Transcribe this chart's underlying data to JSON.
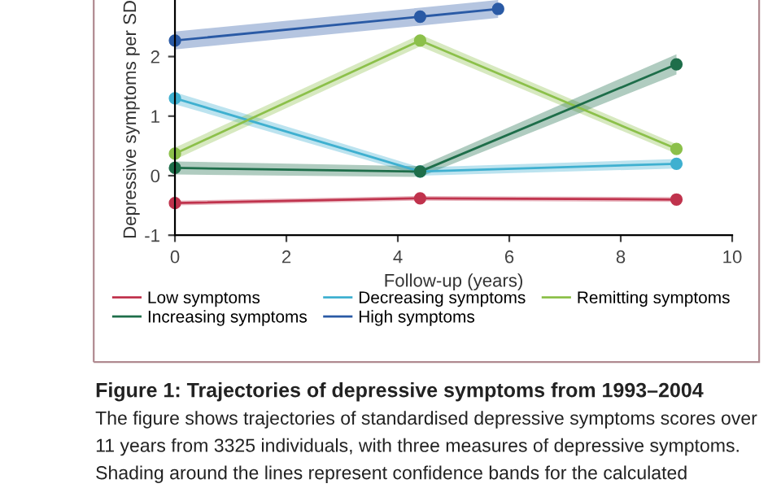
{
  "chart_data": {
    "type": "line",
    "title": "Figure 1: Trajectories of depressive symptoms from 1993–2004",
    "xlabel": "Follow-up (years)",
    "ylabel": "Depressive symptoms per SD",
    "annotations": [
      "The figure shows trajectories of standardised depressive symptoms scores over",
      "11 years from 3325 individuals, with three measures of depressive symptoms.",
      "Shading around the lines represent confidence bands for the calculated"
    ],
    "x": [
      0,
      4.4,
      9
    ],
    "series": [
      {
        "name": "Low symptoms",
        "color": "#c0334d",
        "values": [
          -0.46,
          -0.38,
          -0.4
        ],
        "lower": [
          -0.5,
          -0.42,
          -0.44
        ],
        "upper": [
          -0.42,
          -0.34,
          -0.36
        ]
      },
      {
        "name": "Decreasing symptoms",
        "color": "#3fb0d0",
        "values": [
          1.3,
          0.07,
          0.2
        ],
        "lower": [
          1.2,
          0.0,
          0.12
        ],
        "upper": [
          1.4,
          0.14,
          0.28
        ]
      },
      {
        "name": "Remitting symptoms",
        "color": "#8cc04a",
        "values": [
          0.37,
          2.27,
          0.45
        ],
        "lower": [
          0.27,
          2.17,
          0.37
        ],
        "upper": [
          0.47,
          2.37,
          0.53
        ]
      },
      {
        "name": "Increasing symptoms",
        "color": "#1e6e4a",
        "values": [
          0.13,
          0.07,
          1.87
        ],
        "lower": [
          0.02,
          -0.02,
          1.7
        ],
        "upper": [
          0.24,
          0.16,
          2.04
        ]
      },
      {
        "name": "High symptoms",
        "color": "#2a5aa5",
        "x": [
          0,
          4.4,
          5.8
        ],
        "values": [
          2.27,
          2.67,
          2.8
        ],
        "lower": [
          2.12,
          2.52,
          2.65
        ],
        "upper": [
          2.42,
          2.82,
          2.95
        ]
      }
    ],
    "xlim": [
      0,
      10
    ],
    "xticks": [
      0,
      2,
      4,
      6,
      8,
      10
    ],
    "ylim": [
      -1,
      2.95
    ],
    "yticks": [
      -1,
      0,
      1,
      2
    ],
    "marker": "circle",
    "line_style": "solid",
    "grid": false,
    "legend": "bottom"
  }
}
